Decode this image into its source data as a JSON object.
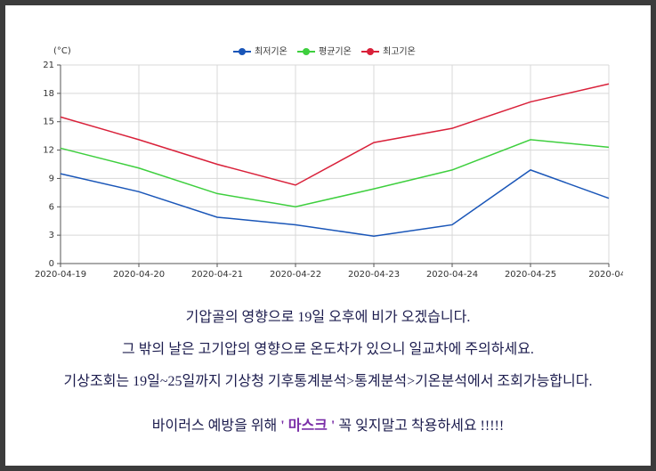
{
  "chart_data": {
    "type": "line",
    "y_unit": "(°C)",
    "categories": [
      "2020-04-19",
      "2020-04-20",
      "2020-04-21",
      "2020-04-22",
      "2020-04-23",
      "2020-04-24",
      "2020-04-25",
      "2020-04-"
    ],
    "series": [
      {
        "name": "최저기온",
        "color": "#1a56b8",
        "values": [
          9.5,
          7.6,
          4.9,
          4.1,
          2.9,
          4.1,
          9.9,
          6.9
        ]
      },
      {
        "name": "평균기온",
        "color": "#3ecf3e",
        "values": [
          12.2,
          10.1,
          7.4,
          6.0,
          7.9,
          9.9,
          13.1,
          12.3
        ]
      },
      {
        "name": "최고기온",
        "color": "#d9213a",
        "values": [
          15.5,
          13.1,
          10.5,
          8.3,
          12.8,
          14.3,
          17.1,
          19.0
        ]
      }
    ],
    "ylim": [
      0,
      21
    ],
    "yticks": [
      0,
      3,
      6,
      9,
      12,
      15,
      18,
      21
    ],
    "grid": true,
    "legend": "top"
  },
  "notes": [
    "기압골의 영향으로 19일 오후에 비가 오겠습니다.",
    "그 밖의 날은 고기압의 영향으로 온도차가 있으니 일교차에 주의하세요.",
    "기상조회는 19일~25일까지 기상청 기후통계분석>통계분석>기온분석에서 조회가능합니다."
  ],
  "notice": {
    "before": "바이러스 예방을 위해",
    "highlight": "' 마스크 '",
    "after": "꼭 잊지말고 착용하세요 !!!!!"
  }
}
